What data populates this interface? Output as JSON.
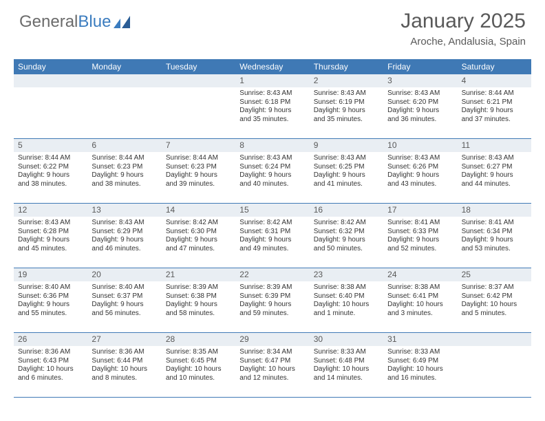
{
  "brand": {
    "part1": "General",
    "part2": "Blue"
  },
  "title": "January 2025",
  "location": "Aroche, Andalusia, Spain",
  "colors": {
    "header_bg": "#3f79b5",
    "daynum_bg": "#e9eef3",
    "text": "#333333",
    "muted": "#595959"
  },
  "day_labels": [
    "Sunday",
    "Monday",
    "Tuesday",
    "Wednesday",
    "Thursday",
    "Friday",
    "Saturday"
  ],
  "weeks": [
    [
      null,
      null,
      null,
      {
        "n": "1",
        "sunrise": "Sunrise: 8:43 AM",
        "sunset": "Sunset: 6:18 PM",
        "daylight1": "Daylight: 9 hours",
        "daylight2": "and 35 minutes."
      },
      {
        "n": "2",
        "sunrise": "Sunrise: 8:43 AM",
        "sunset": "Sunset: 6:19 PM",
        "daylight1": "Daylight: 9 hours",
        "daylight2": "and 35 minutes."
      },
      {
        "n": "3",
        "sunrise": "Sunrise: 8:43 AM",
        "sunset": "Sunset: 6:20 PM",
        "daylight1": "Daylight: 9 hours",
        "daylight2": "and 36 minutes."
      },
      {
        "n": "4",
        "sunrise": "Sunrise: 8:44 AM",
        "sunset": "Sunset: 6:21 PM",
        "daylight1": "Daylight: 9 hours",
        "daylight2": "and 37 minutes."
      }
    ],
    [
      {
        "n": "5",
        "sunrise": "Sunrise: 8:44 AM",
        "sunset": "Sunset: 6:22 PM",
        "daylight1": "Daylight: 9 hours",
        "daylight2": "and 38 minutes."
      },
      {
        "n": "6",
        "sunrise": "Sunrise: 8:44 AM",
        "sunset": "Sunset: 6:23 PM",
        "daylight1": "Daylight: 9 hours",
        "daylight2": "and 38 minutes."
      },
      {
        "n": "7",
        "sunrise": "Sunrise: 8:44 AM",
        "sunset": "Sunset: 6:23 PM",
        "daylight1": "Daylight: 9 hours",
        "daylight2": "and 39 minutes."
      },
      {
        "n": "8",
        "sunrise": "Sunrise: 8:43 AM",
        "sunset": "Sunset: 6:24 PM",
        "daylight1": "Daylight: 9 hours",
        "daylight2": "and 40 minutes."
      },
      {
        "n": "9",
        "sunrise": "Sunrise: 8:43 AM",
        "sunset": "Sunset: 6:25 PM",
        "daylight1": "Daylight: 9 hours",
        "daylight2": "and 41 minutes."
      },
      {
        "n": "10",
        "sunrise": "Sunrise: 8:43 AM",
        "sunset": "Sunset: 6:26 PM",
        "daylight1": "Daylight: 9 hours",
        "daylight2": "and 43 minutes."
      },
      {
        "n": "11",
        "sunrise": "Sunrise: 8:43 AM",
        "sunset": "Sunset: 6:27 PM",
        "daylight1": "Daylight: 9 hours",
        "daylight2": "and 44 minutes."
      }
    ],
    [
      {
        "n": "12",
        "sunrise": "Sunrise: 8:43 AM",
        "sunset": "Sunset: 6:28 PM",
        "daylight1": "Daylight: 9 hours",
        "daylight2": "and 45 minutes."
      },
      {
        "n": "13",
        "sunrise": "Sunrise: 8:43 AM",
        "sunset": "Sunset: 6:29 PM",
        "daylight1": "Daylight: 9 hours",
        "daylight2": "and 46 minutes."
      },
      {
        "n": "14",
        "sunrise": "Sunrise: 8:42 AM",
        "sunset": "Sunset: 6:30 PM",
        "daylight1": "Daylight: 9 hours",
        "daylight2": "and 47 minutes."
      },
      {
        "n": "15",
        "sunrise": "Sunrise: 8:42 AM",
        "sunset": "Sunset: 6:31 PM",
        "daylight1": "Daylight: 9 hours",
        "daylight2": "and 49 minutes."
      },
      {
        "n": "16",
        "sunrise": "Sunrise: 8:42 AM",
        "sunset": "Sunset: 6:32 PM",
        "daylight1": "Daylight: 9 hours",
        "daylight2": "and 50 minutes."
      },
      {
        "n": "17",
        "sunrise": "Sunrise: 8:41 AM",
        "sunset": "Sunset: 6:33 PM",
        "daylight1": "Daylight: 9 hours",
        "daylight2": "and 52 minutes."
      },
      {
        "n": "18",
        "sunrise": "Sunrise: 8:41 AM",
        "sunset": "Sunset: 6:34 PM",
        "daylight1": "Daylight: 9 hours",
        "daylight2": "and 53 minutes."
      }
    ],
    [
      {
        "n": "19",
        "sunrise": "Sunrise: 8:40 AM",
        "sunset": "Sunset: 6:36 PM",
        "daylight1": "Daylight: 9 hours",
        "daylight2": "and 55 minutes."
      },
      {
        "n": "20",
        "sunrise": "Sunrise: 8:40 AM",
        "sunset": "Sunset: 6:37 PM",
        "daylight1": "Daylight: 9 hours",
        "daylight2": "and 56 minutes."
      },
      {
        "n": "21",
        "sunrise": "Sunrise: 8:39 AM",
        "sunset": "Sunset: 6:38 PM",
        "daylight1": "Daylight: 9 hours",
        "daylight2": "and 58 minutes."
      },
      {
        "n": "22",
        "sunrise": "Sunrise: 8:39 AM",
        "sunset": "Sunset: 6:39 PM",
        "daylight1": "Daylight: 9 hours",
        "daylight2": "and 59 minutes."
      },
      {
        "n": "23",
        "sunrise": "Sunrise: 8:38 AM",
        "sunset": "Sunset: 6:40 PM",
        "daylight1": "Daylight: 10 hours",
        "daylight2": "and 1 minute."
      },
      {
        "n": "24",
        "sunrise": "Sunrise: 8:38 AM",
        "sunset": "Sunset: 6:41 PM",
        "daylight1": "Daylight: 10 hours",
        "daylight2": "and 3 minutes."
      },
      {
        "n": "25",
        "sunrise": "Sunrise: 8:37 AM",
        "sunset": "Sunset: 6:42 PM",
        "daylight1": "Daylight: 10 hours",
        "daylight2": "and 5 minutes."
      }
    ],
    [
      {
        "n": "26",
        "sunrise": "Sunrise: 8:36 AM",
        "sunset": "Sunset: 6:43 PM",
        "daylight1": "Daylight: 10 hours",
        "daylight2": "and 6 minutes."
      },
      {
        "n": "27",
        "sunrise": "Sunrise: 8:36 AM",
        "sunset": "Sunset: 6:44 PM",
        "daylight1": "Daylight: 10 hours",
        "daylight2": "and 8 minutes."
      },
      {
        "n": "28",
        "sunrise": "Sunrise: 8:35 AM",
        "sunset": "Sunset: 6:45 PM",
        "daylight1": "Daylight: 10 hours",
        "daylight2": "and 10 minutes."
      },
      {
        "n": "29",
        "sunrise": "Sunrise: 8:34 AM",
        "sunset": "Sunset: 6:47 PM",
        "daylight1": "Daylight: 10 hours",
        "daylight2": "and 12 minutes."
      },
      {
        "n": "30",
        "sunrise": "Sunrise: 8:33 AM",
        "sunset": "Sunset: 6:48 PM",
        "daylight1": "Daylight: 10 hours",
        "daylight2": "and 14 minutes."
      },
      {
        "n": "31",
        "sunrise": "Sunrise: 8:33 AM",
        "sunset": "Sunset: 6:49 PM",
        "daylight1": "Daylight: 10 hours",
        "daylight2": "and 16 minutes."
      },
      null
    ]
  ]
}
